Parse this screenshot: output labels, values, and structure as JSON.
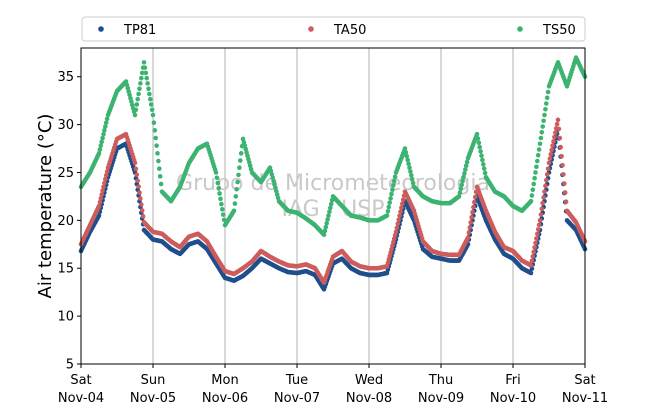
{
  "chart_data": {
    "type": "scatter",
    "ylabel": "Air temperature (°C)",
    "ylim": [
      5,
      38
    ],
    "yticks": [
      5,
      10,
      15,
      20,
      25,
      30,
      35
    ],
    "xlim": [
      "2023-11-04T00:00",
      "2023-11-11T00:00"
    ],
    "xticks": [
      {
        "x": "2023-11-04T00:00",
        "day": "Sat",
        "date": "Nov-04"
      },
      {
        "x": "2023-11-05T00:00",
        "day": "Sun",
        "date": "Nov-05"
      },
      {
        "x": "2023-11-06T00:00",
        "day": "Mon",
        "date": "Nov-06"
      },
      {
        "x": "2023-11-07T00:00",
        "day": "Tue",
        "date": "Nov-07"
      },
      {
        "x": "2023-11-08T00:00",
        "day": "Wed",
        "date": "Nov-08"
      },
      {
        "x": "2023-11-09T00:00",
        "day": "Thu",
        "date": "Nov-09"
      },
      {
        "x": "2023-11-10T00:00",
        "day": "Fri",
        "date": "Nov-10"
      },
      {
        "x": "2023-11-11T00:00",
        "day": "Sat",
        "date": "Nov-11"
      }
    ],
    "grid": "vertical",
    "legend_position": "top",
    "watermark": [
      "Grupo de Micrometeorologia",
      "IAG / USP"
    ],
    "series": [
      {
        "name": "TP81",
        "color": "#1f4e8c",
        "points": [
          [
            "2023-11-04T00:00",
            16.8
          ],
          [
            "2023-11-04T03:00",
            18.8
          ],
          [
            "2023-11-04T06:00",
            20.5
          ],
          [
            "2023-11-04T09:00",
            24.5
          ],
          [
            "2023-11-04T12:00",
            27.5
          ],
          [
            "2023-11-04T15:00",
            28.0
          ],
          [
            "2023-11-04T18:00",
            25.0
          ],
          [
            "2023-11-04T21:00",
            19.0
          ],
          [
            "2023-11-05T00:00",
            18.0
          ],
          [
            "2023-11-05T03:00",
            17.8
          ],
          [
            "2023-11-05T06:00",
            17.0
          ],
          [
            "2023-11-05T09:00",
            16.5
          ],
          [
            "2023-11-05T12:00",
            17.5
          ],
          [
            "2023-11-05T15:00",
            17.8
          ],
          [
            "2023-11-05T18:00",
            17.0
          ],
          [
            "2023-11-05T21:00",
            15.5
          ],
          [
            "2023-11-06T00:00",
            14.0
          ],
          [
            "2023-11-06T03:00",
            13.7
          ],
          [
            "2023-11-06T06:00",
            14.2
          ],
          [
            "2023-11-06T09:00",
            15.0
          ],
          [
            "2023-11-06T12:00",
            16.0
          ],
          [
            "2023-11-06T15:00",
            15.5
          ],
          [
            "2023-11-06T18:00",
            15.0
          ],
          [
            "2023-11-06T21:00",
            14.6
          ],
          [
            "2023-11-07T00:00",
            14.5
          ],
          [
            "2023-11-07T03:00",
            14.7
          ],
          [
            "2023-11-07T06:00",
            14.3
          ],
          [
            "2023-11-07T09:00",
            12.8
          ],
          [
            "2023-11-07T12:00",
            15.5
          ],
          [
            "2023-11-07T15:00",
            16.0
          ],
          [
            "2023-11-07T18:00",
            15.0
          ],
          [
            "2023-11-07T21:00",
            14.5
          ],
          [
            "2023-11-08T00:00",
            14.3
          ],
          [
            "2023-11-08T03:00",
            14.3
          ],
          [
            "2023-11-08T06:00",
            14.5
          ],
          [
            "2023-11-08T09:00",
            18.0
          ],
          [
            "2023-11-08T12:00",
            22.0
          ],
          [
            "2023-11-08T15:00",
            20.0
          ],
          [
            "2023-11-08T18:00",
            17.0
          ],
          [
            "2023-11-08T21:00",
            16.2
          ],
          [
            "2023-11-09T00:00",
            16.0
          ],
          [
            "2023-11-09T03:00",
            15.8
          ],
          [
            "2023-11-09T06:00",
            15.8
          ],
          [
            "2023-11-09T09:00",
            17.5
          ],
          [
            "2023-11-09T12:00",
            22.5
          ],
          [
            "2023-11-09T15:00",
            20.0
          ],
          [
            "2023-11-09T18:00",
            18.0
          ],
          [
            "2023-11-09T21:00",
            16.5
          ],
          [
            "2023-11-10T00:00",
            16.0
          ],
          [
            "2023-11-10T03:00",
            15.0
          ],
          [
            "2023-11-10T06:00",
            14.5
          ],
          [
            "2023-11-10T09:00",
            19.0
          ],
          [
            "2023-11-10T12:00",
            25.0
          ],
          [
            "2023-11-10T15:00",
            29.5
          ],
          [
            "2023-11-10T18:00",
            20.0
          ],
          [
            "2023-11-10T21:00",
            19.0
          ],
          [
            "2023-11-11T00:00",
            17.0
          ]
        ]
      },
      {
        "name": "TA50",
        "color": "#cd5c5c",
        "points": [
          [
            "2023-11-04T00:00",
            17.5
          ],
          [
            "2023-11-04T03:00",
            19.5
          ],
          [
            "2023-11-04T06:00",
            21.5
          ],
          [
            "2023-11-04T09:00",
            25.5
          ],
          [
            "2023-11-04T12:00",
            28.5
          ],
          [
            "2023-11-04T15:00",
            29.0
          ],
          [
            "2023-11-04T18:00",
            26.0
          ],
          [
            "2023-11-04T21:00",
            19.8
          ],
          [
            "2023-11-05T00:00",
            18.8
          ],
          [
            "2023-11-05T03:00",
            18.6
          ],
          [
            "2023-11-05T06:00",
            17.8
          ],
          [
            "2023-11-05T09:00",
            17.2
          ],
          [
            "2023-11-05T12:00",
            18.3
          ],
          [
            "2023-11-05T15:00",
            18.6
          ],
          [
            "2023-11-05T18:00",
            17.8
          ],
          [
            "2023-11-05T21:00",
            16.2
          ],
          [
            "2023-11-06T00:00",
            14.7
          ],
          [
            "2023-11-06T03:00",
            14.4
          ],
          [
            "2023-11-06T06:00",
            15.0
          ],
          [
            "2023-11-06T09:00",
            15.7
          ],
          [
            "2023-11-06T12:00",
            16.8
          ],
          [
            "2023-11-06T15:00",
            16.2
          ],
          [
            "2023-11-06T18:00",
            15.7
          ],
          [
            "2023-11-06T21:00",
            15.3
          ],
          [
            "2023-11-07T00:00",
            15.2
          ],
          [
            "2023-11-07T03:00",
            15.4
          ],
          [
            "2023-11-07T06:00",
            15.0
          ],
          [
            "2023-11-07T09:00",
            13.5
          ],
          [
            "2023-11-07T12:00",
            16.2
          ],
          [
            "2023-11-07T15:00",
            16.8
          ],
          [
            "2023-11-07T18:00",
            15.7
          ],
          [
            "2023-11-07T21:00",
            15.2
          ],
          [
            "2023-11-08T00:00",
            15.0
          ],
          [
            "2023-11-08T03:00",
            15.0
          ],
          [
            "2023-11-08T06:00",
            15.2
          ],
          [
            "2023-11-08T09:00",
            18.8
          ],
          [
            "2023-11-08T12:00",
            23.0
          ],
          [
            "2023-11-08T15:00",
            21.0
          ],
          [
            "2023-11-08T18:00",
            17.8
          ],
          [
            "2023-11-08T21:00",
            16.8
          ],
          [
            "2023-11-09T00:00",
            16.5
          ],
          [
            "2023-11-09T03:00",
            16.4
          ],
          [
            "2023-11-09T06:00",
            16.4
          ],
          [
            "2023-11-09T09:00",
            18.2
          ],
          [
            "2023-11-09T12:00",
            23.5
          ],
          [
            "2023-11-09T15:00",
            21.0
          ],
          [
            "2023-11-09T18:00",
            18.8
          ],
          [
            "2023-11-09T21:00",
            17.2
          ],
          [
            "2023-11-10T00:00",
            16.8
          ],
          [
            "2023-11-10T03:00",
            15.8
          ],
          [
            "2023-11-10T06:00",
            15.3
          ],
          [
            "2023-11-10T09:00",
            20.0
          ],
          [
            "2023-11-10T12:00",
            26.0
          ],
          [
            "2023-11-10T15:00",
            30.5
          ],
          [
            "2023-11-10T18:00",
            21.0
          ],
          [
            "2023-11-10T21:00",
            19.8
          ],
          [
            "2023-11-11T00:00",
            17.8
          ]
        ]
      },
      {
        "name": "TS50",
        "color": "#3cb371",
        "points": [
          [
            "2023-11-04T00:00",
            23.5
          ],
          [
            "2023-11-04T03:00",
            25.0
          ],
          [
            "2023-11-04T06:00",
            27.0
          ],
          [
            "2023-11-04T09:00",
            31.0
          ],
          [
            "2023-11-04T12:00",
            33.5
          ],
          [
            "2023-11-04T15:00",
            34.5
          ],
          [
            "2023-11-04T18:00",
            31.0
          ],
          [
            "2023-11-04T21:00",
            36.5
          ],
          [
            "2023-11-05T00:00",
            31.0
          ],
          [
            "2023-11-05T03:00",
            23.0
          ],
          [
            "2023-11-05T06:00",
            22.0
          ],
          [
            "2023-11-05T09:00",
            23.5
          ],
          [
            "2023-11-05T12:00",
            26.0
          ],
          [
            "2023-11-05T15:00",
            27.5
          ],
          [
            "2023-11-05T18:00",
            28.0
          ],
          [
            "2023-11-05T21:00",
            25.0
          ],
          [
            "2023-11-06T00:00",
            19.5
          ],
          [
            "2023-11-06T03:00",
            21.0
          ],
          [
            "2023-11-06T06:00",
            28.5
          ],
          [
            "2023-11-06T09:00",
            25.0
          ],
          [
            "2023-11-06T12:00",
            24.0
          ],
          [
            "2023-11-06T15:00",
            25.5
          ],
          [
            "2023-11-06T18:00",
            22.0
          ],
          [
            "2023-11-06T21:00",
            21.0
          ],
          [
            "2023-11-07T00:00",
            20.8
          ],
          [
            "2023-11-07T03:00",
            20.2
          ],
          [
            "2023-11-07T06:00",
            19.5
          ],
          [
            "2023-11-07T09:00",
            18.5
          ],
          [
            "2023-11-07T12:00",
            22.5
          ],
          [
            "2023-11-07T15:00",
            21.5
          ],
          [
            "2023-11-07T18:00",
            20.5
          ],
          [
            "2023-11-07T21:00",
            20.3
          ],
          [
            "2023-11-08T00:00",
            20.0
          ],
          [
            "2023-11-08T03:00",
            20.0
          ],
          [
            "2023-11-08T06:00",
            20.5
          ],
          [
            "2023-11-08T09:00",
            25.0
          ],
          [
            "2023-11-08T12:00",
            27.5
          ],
          [
            "2023-11-08T15:00",
            23.5
          ],
          [
            "2023-11-08T18:00",
            22.5
          ],
          [
            "2023-11-08T21:00",
            22.0
          ],
          [
            "2023-11-09T00:00",
            21.8
          ],
          [
            "2023-11-09T03:00",
            21.8
          ],
          [
            "2023-11-09T06:00",
            22.5
          ],
          [
            "2023-11-09T09:00",
            26.5
          ],
          [
            "2023-11-09T12:00",
            29.0
          ],
          [
            "2023-11-09T15:00",
            24.5
          ],
          [
            "2023-11-09T18:00",
            23.0
          ],
          [
            "2023-11-09T21:00",
            22.5
          ],
          [
            "2023-11-10T00:00",
            21.5
          ],
          [
            "2023-11-10T03:00",
            21.0
          ],
          [
            "2023-11-10T06:00",
            22.0
          ],
          [
            "2023-11-10T09:00",
            28.0
          ],
          [
            "2023-11-10T12:00",
            34.0
          ],
          [
            "2023-11-10T15:00",
            36.5
          ],
          [
            "2023-11-10T18:00",
            34.0
          ],
          [
            "2023-11-10T21:00",
            37.0
          ],
          [
            "2023-11-11T00:00",
            35.0
          ]
        ]
      }
    ]
  }
}
